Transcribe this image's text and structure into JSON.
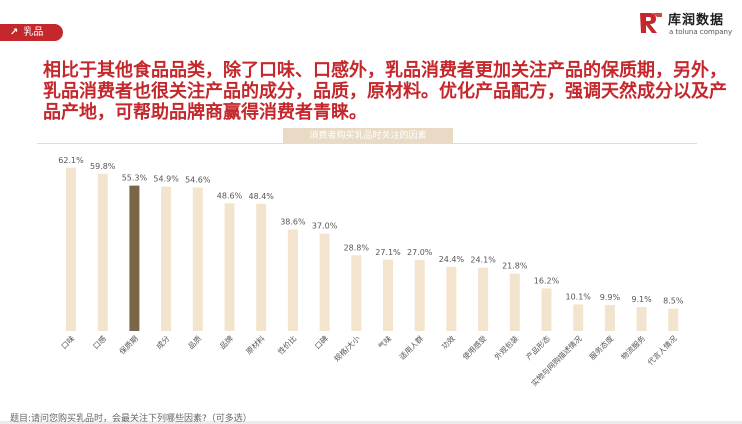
{
  "tag": {
    "label": "乳品",
    "icon": "arrow-up-right-icon"
  },
  "logo": {
    "main": "库润数据",
    "sub": "a toluna company",
    "brand_color": "#c4282c"
  },
  "headline": "相比于其他食品品类，除了口味、口感外，乳品消费者更加关注产品的保质期，另外，乳品消费者也很关注产品的成分，品质，原材料。优化产品配方，强调天然成分以及产品产地，可帮助品牌商赢得消费者青睐。",
  "chart_data": {
    "type": "bar",
    "title": "消费者购买乳品时关注的因素",
    "categories": [
      "口味",
      "口感",
      "保质期",
      "成分",
      "品质",
      "品牌",
      "原材料",
      "性价比",
      "口碑",
      "规格/大小",
      "气味",
      "适用人群",
      "功效",
      "使用感受",
      "外观包装",
      "产品形态",
      "实物与网购描述情况",
      "服务态度",
      "物流服务",
      "代言人情况"
    ],
    "values": [
      62.1,
      59.8,
      55.3,
      54.9,
      54.6,
      48.6,
      48.4,
      38.6,
      37.0,
      28.8,
      27.1,
      27.0,
      24.4,
      24.1,
      21.8,
      16.2,
      10.1,
      9.9,
      9.1,
      8.5
    ],
    "value_labels": [
      "62.1%",
      "59.8%",
      "55.3%",
      "54.9%",
      "54.6%",
      "48.6%",
      "48.4%",
      "38.6%",
      "37.0%",
      "28.8%",
      "27.1%",
      "27.0%",
      "24.4%",
      "24.1%",
      "21.8%",
      "16.2%",
      "10.1%",
      "9.9%",
      "9.1%",
      "8.5%"
    ],
    "highlight_index": 2,
    "colors": {
      "bar": "#f3e4cd",
      "highlight": "#7a6547"
    },
    "ylim": [
      0,
      70
    ],
    "grid": false,
    "legend": "none"
  },
  "footnote": "题目:请问您购买乳品时，会最关注下列哪些因素?（可多选）"
}
